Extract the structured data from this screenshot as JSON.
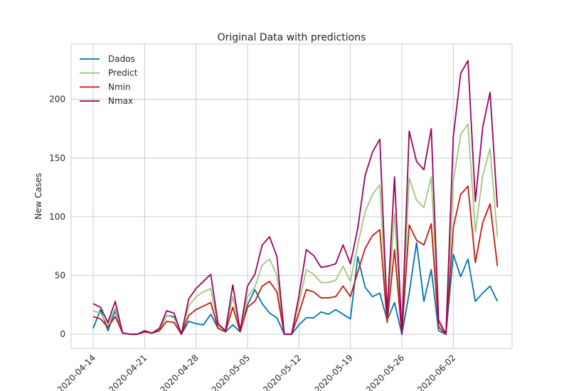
{
  "chart_data": {
    "type": "line",
    "title": "Original Data with predictions",
    "ylabel": "New Cases",
    "x": [
      "2020-04-14",
      "2020-04-15",
      "2020-04-16",
      "2020-04-17",
      "2020-04-18",
      "2020-04-19",
      "2020-04-20",
      "2020-04-21",
      "2020-04-22",
      "2020-04-23",
      "2020-04-24",
      "2020-04-25",
      "2020-04-26",
      "2020-04-27",
      "2020-04-28",
      "2020-04-29",
      "2020-04-30",
      "2020-05-01",
      "2020-05-02",
      "2020-05-03",
      "2020-05-04",
      "2020-05-05",
      "2020-05-06",
      "2020-05-07",
      "2020-05-08",
      "2020-05-09",
      "2020-05-10",
      "2020-05-11",
      "2020-05-12",
      "2020-05-13",
      "2020-05-14",
      "2020-05-15",
      "2020-05-16",
      "2020-05-17",
      "2020-05-18",
      "2020-05-19",
      "2020-05-20",
      "2020-05-21",
      "2020-05-22",
      "2020-05-23",
      "2020-05-24",
      "2020-05-25",
      "2020-05-26",
      "2020-05-27",
      "2020-05-28",
      "2020-05-29",
      "2020-05-30",
      "2020-05-31",
      "2020-06-01",
      "2020-06-02",
      "2020-06-03",
      "2020-06-04",
      "2020-06-05",
      "2020-06-06",
      "2020-06-07",
      "2020-06-08"
    ],
    "series": [
      {
        "name": "Dados",
        "color": "#0072b2",
        "values": [
          5,
          21,
          3,
          20,
          1,
          0,
          0,
          2,
          1,
          3,
          16,
          15,
          0,
          11,
          9,
          8,
          17,
          5,
          2,
          8,
          2,
          25,
          38,
          26,
          18,
          14,
          0,
          0,
          8,
          14,
          14,
          19,
          17,
          21,
          17,
          13,
          66,
          40,
          32,
          35,
          12,
          27,
          0,
          35,
          78,
          28,
          55,
          3,
          0,
          68,
          49,
          64,
          28,
          35,
          41,
          28
        ]
      },
      {
        "name": "Predict",
        "color": "#9dc77d",
        "values": [
          20,
          18,
          8,
          22,
          1,
          0,
          0,
          2,
          1,
          4,
          16,
          14,
          0,
          24,
          32,
          36,
          39,
          7,
          3,
          32,
          3,
          32,
          40,
          59,
          64,
          50,
          0,
          0,
          26,
          55,
          51,
          44,
          44,
          46,
          58,
          45,
          76,
          104,
          119,
          127,
          14,
          103,
          0,
          133,
          114,
          108,
          134,
          9,
          0,
          130,
          170,
          179,
          87,
          135,
          158,
          83
        ]
      },
      {
        "name": "Nmin",
        "color": "#c41a0a",
        "values": [
          15,
          13,
          6,
          15,
          1,
          0,
          0,
          2,
          1,
          3,
          11,
          10,
          0,
          16,
          21,
          24,
          27,
          5,
          2,
          23,
          2,
          23,
          28,
          41,
          45,
          36,
          0,
          0,
          18,
          38,
          36,
          31,
          31,
          32,
          41,
          32,
          53,
          73,
          84,
          89,
          10,
          72,
          0,
          93,
          80,
          76,
          94,
          6,
          0,
          91,
          119,
          126,
          61,
          95,
          111,
          58
        ]
      },
      {
        "name": "Nmax",
        "color": "#9c0060",
        "values": [
          26,
          23,
          10,
          28,
          1,
          0,
          0,
          3,
          1,
          5,
          20,
          18,
          0,
          30,
          39,
          45,
          51,
          9,
          3,
          42,
          3,
          41,
          51,
          76,
          83,
          66,
          0,
          0,
          33,
          72,
          67,
          57,
          58,
          60,
          76,
          60,
          90,
          135,
          155,
          166,
          18,
          134,
          0,
          173,
          147,
          140,
          175,
          12,
          0,
          168,
          222,
          233,
          113,
          176,
          206,
          108
        ]
      }
    ],
    "xlim": [
      "2020-04-11",
      "2020-06-10"
    ],
    "xticks": [
      "2020-04-14",
      "2020-04-21",
      "2020-04-28",
      "2020-05-05",
      "2020-05-12",
      "2020-05-19",
      "2020-05-26",
      "2020-06-02"
    ],
    "ylim": [
      -12,
      247
    ],
    "yticks": [
      0,
      50,
      100,
      150,
      200
    ],
    "grid": true,
    "legend": "upper left"
  }
}
